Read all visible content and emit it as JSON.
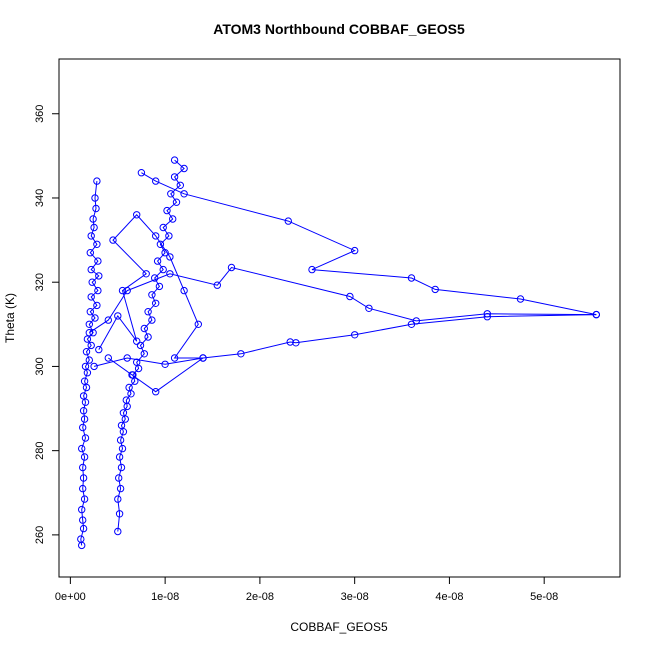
{
  "chart_data": {
    "type": "line",
    "title": "ATOM3 Northbound COBBAF_GEOS5",
    "xlabel": "COBBAF_GEOS5",
    "ylabel": "Theta (K)",
    "xlim": [
      -1.2e-09,
      5.8e-08
    ],
    "ylim": [
      250,
      373
    ],
    "x_ticks": [
      0,
      1e-08,
      2e-08,
      3e-08,
      4e-08,
      5e-08
    ],
    "x_tick_labels": [
      "0e+00",
      "1e-08",
      "2e-08",
      "3e-08",
      "4e-08",
      "5e-08"
    ],
    "y_ticks": [
      260,
      280,
      300,
      320,
      340,
      360
    ],
    "y_tick_labels": [
      "260",
      "280",
      "300",
      "320",
      "340",
      "360"
    ],
    "grid": false,
    "legend": "none",
    "marker": "open-circle",
    "series": [
      {
        "points": [
          [
            1.2e-09,
            257.5
          ],
          [
            1.1e-09,
            259.0
          ],
          [
            1.4e-09,
            261.5
          ],
          [
            1.3e-09,
            263.5
          ],
          [
            1.2e-09,
            266.0
          ],
          [
            1.5e-09,
            268.5
          ],
          [
            1.3e-09,
            271.0
          ],
          [
            1.4e-09,
            273.5
          ],
          [
            1.3e-09,
            276.0
          ],
          [
            1.5e-09,
            278.5
          ],
          [
            1.2e-09,
            280.5
          ],
          [
            1.6e-09,
            283.0
          ],
          [
            1.3e-09,
            285.5
          ],
          [
            1.5e-09,
            287.5
          ],
          [
            1.4e-09,
            289.5
          ],
          [
            1.6e-09,
            291.5
          ],
          [
            1.4e-09,
            293.0
          ],
          [
            1.7e-09,
            295.0
          ],
          [
            1.5e-09,
            296.5
          ],
          [
            1.8e-09,
            298.5
          ],
          [
            1.6e-09,
            300.0
          ],
          [
            2e-09,
            301.5
          ],
          [
            1.7e-09,
            303.5
          ],
          [
            2.2e-09,
            305.0
          ],
          [
            1.8e-09,
            306.5
          ],
          [
            2.4e-09,
            308.0
          ],
          [
            2e-09,
            310.0
          ],
          [
            2.6e-09,
            311.5
          ],
          [
            2.1e-09,
            313.0
          ],
          [
            2.8e-09,
            314.5
          ],
          [
            2.2e-09,
            316.5
          ],
          [
            2.9e-09,
            318.0
          ],
          [
            2.3e-09,
            320.0
          ],
          [
            3e-09,
            321.5
          ],
          [
            2.2e-09,
            323.0
          ],
          [
            2.9e-09,
            325.0
          ],
          [
            2.1e-09,
            327.0
          ],
          [
            2.8e-09,
            329.0
          ],
          [
            2.2e-09,
            331.0
          ],
          [
            2.5e-09,
            333.0
          ],
          [
            2.4e-09,
            335.0
          ],
          [
            2.7e-09,
            337.5
          ],
          [
            2.6e-09,
            340.0
          ],
          [
            2.8e-09,
            344.0
          ]
        ]
      },
      {
        "points": [
          [
            5e-09,
            260.8
          ],
          [
            5.2e-09,
            265.0
          ],
          [
            5e-09,
            268.5
          ],
          [
            5.3e-09,
            271.0
          ],
          [
            5.1e-09,
            273.5
          ],
          [
            5.4e-09,
            276.0
          ],
          [
            5.2e-09,
            278.5
          ],
          [
            5.5e-09,
            280.5
          ],
          [
            5.3e-09,
            282.5
          ],
          [
            5.6e-09,
            284.5
          ],
          [
            5.4e-09,
            286.0
          ],
          [
            5.8e-09,
            287.5
          ],
          [
            5.6e-09,
            289.0
          ],
          [
            6e-09,
            290.5
          ],
          [
            5.9e-09,
            292.0
          ],
          [
            6.4e-09,
            293.5
          ],
          [
            6.2e-09,
            295.0
          ],
          [
            6.8e-09,
            296.5
          ],
          [
            6.6e-09,
            298.0
          ],
          [
            7.2e-09,
            299.5
          ],
          [
            7e-09,
            301.0
          ],
          [
            7.8e-09,
            303.0
          ],
          [
            7.4e-09,
            305.0
          ],
          [
            8.2e-09,
            307.0
          ],
          [
            7.8e-09,
            309.0
          ],
          [
            8.6e-09,
            311.0
          ],
          [
            8.2e-09,
            313.0
          ],
          [
            9e-09,
            315.0
          ],
          [
            8.6e-09,
            317.0
          ],
          [
            9.4e-09,
            319.0
          ],
          [
            8.9e-09,
            321.0
          ],
          [
            9.8e-09,
            323.0
          ],
          [
            9.2e-09,
            325.0
          ],
          [
            1e-08,
            327.0
          ],
          [
            9.5e-09,
            329.0
          ],
          [
            1.04e-08,
            331.0
          ],
          [
            9.8e-09,
            333.0
          ],
          [
            1.08e-08,
            335.0
          ],
          [
            1.02e-08,
            337.0
          ],
          [
            1.12e-08,
            339.0
          ],
          [
            1.06e-08,
            341.0
          ],
          [
            1.16e-08,
            343.0
          ],
          [
            1.1e-08,
            345.0
          ],
          [
            1.2e-08,
            347.0
          ],
          [
            1.1e-08,
            349.0
          ]
        ]
      },
      {
        "points": [
          [
            7.5e-09,
            346.0
          ],
          [
            9e-09,
            344.0
          ],
          [
            1.2e-08,
            341.0
          ],
          [
            2.3e-08,
            334.5
          ],
          [
            3e-08,
            327.5
          ],
          [
            2.55e-08,
            323.0
          ],
          [
            3.6e-08,
            321.0
          ],
          [
            3.85e-08,
            318.3
          ],
          [
            4.75e-08,
            316.0
          ],
          [
            5.55e-08,
            312.3
          ],
          [
            4.4e-08,
            312.5
          ],
          [
            3.65e-08,
            310.8
          ],
          [
            3.15e-08,
            313.8
          ],
          [
            2.95e-08,
            316.6
          ],
          [
            1.7e-08,
            323.5
          ],
          [
            1.55e-08,
            319.3
          ],
          [
            1.05e-08,
            322.0
          ],
          [
            6e-09,
            318.0
          ],
          [
            4e-09,
            311.0
          ],
          [
            2e-09,
            308.0
          ]
        ]
      },
      {
        "points": [
          [
            2.5e-09,
            300.0
          ],
          [
            6e-09,
            302.0
          ],
          [
            1e-08,
            300.5
          ],
          [
            1.4e-08,
            302.0
          ],
          [
            1.8e-08,
            303.0
          ],
          [
            2.32e-08,
            305.8
          ],
          [
            2.38e-08,
            305.6
          ],
          [
            3e-08,
            307.5
          ],
          [
            3.6e-08,
            310.0
          ],
          [
            4.4e-08,
            311.8
          ],
          [
            5.55e-08,
            312.3
          ]
        ]
      },
      {
        "points": [
          [
            3e-09,
            304.0
          ],
          [
            5e-09,
            312.0
          ],
          [
            7e-09,
            306.0
          ],
          [
            5.5e-09,
            318.0
          ],
          [
            8e-09,
            322.0
          ],
          [
            4.5e-09,
            330.0
          ],
          [
            7e-09,
            336.0
          ],
          [
            9e-09,
            331.0
          ],
          [
            1.05e-08,
            326.0
          ],
          [
            1.2e-08,
            318.0
          ],
          [
            1.35e-08,
            310.0
          ],
          [
            1.1e-08,
            302.0
          ],
          [
            1.4e-08,
            302.0
          ],
          [
            9e-09,
            294.0
          ],
          [
            6.5e-09,
            298.0
          ],
          [
            4e-09,
            302.0
          ]
        ]
      }
    ]
  }
}
